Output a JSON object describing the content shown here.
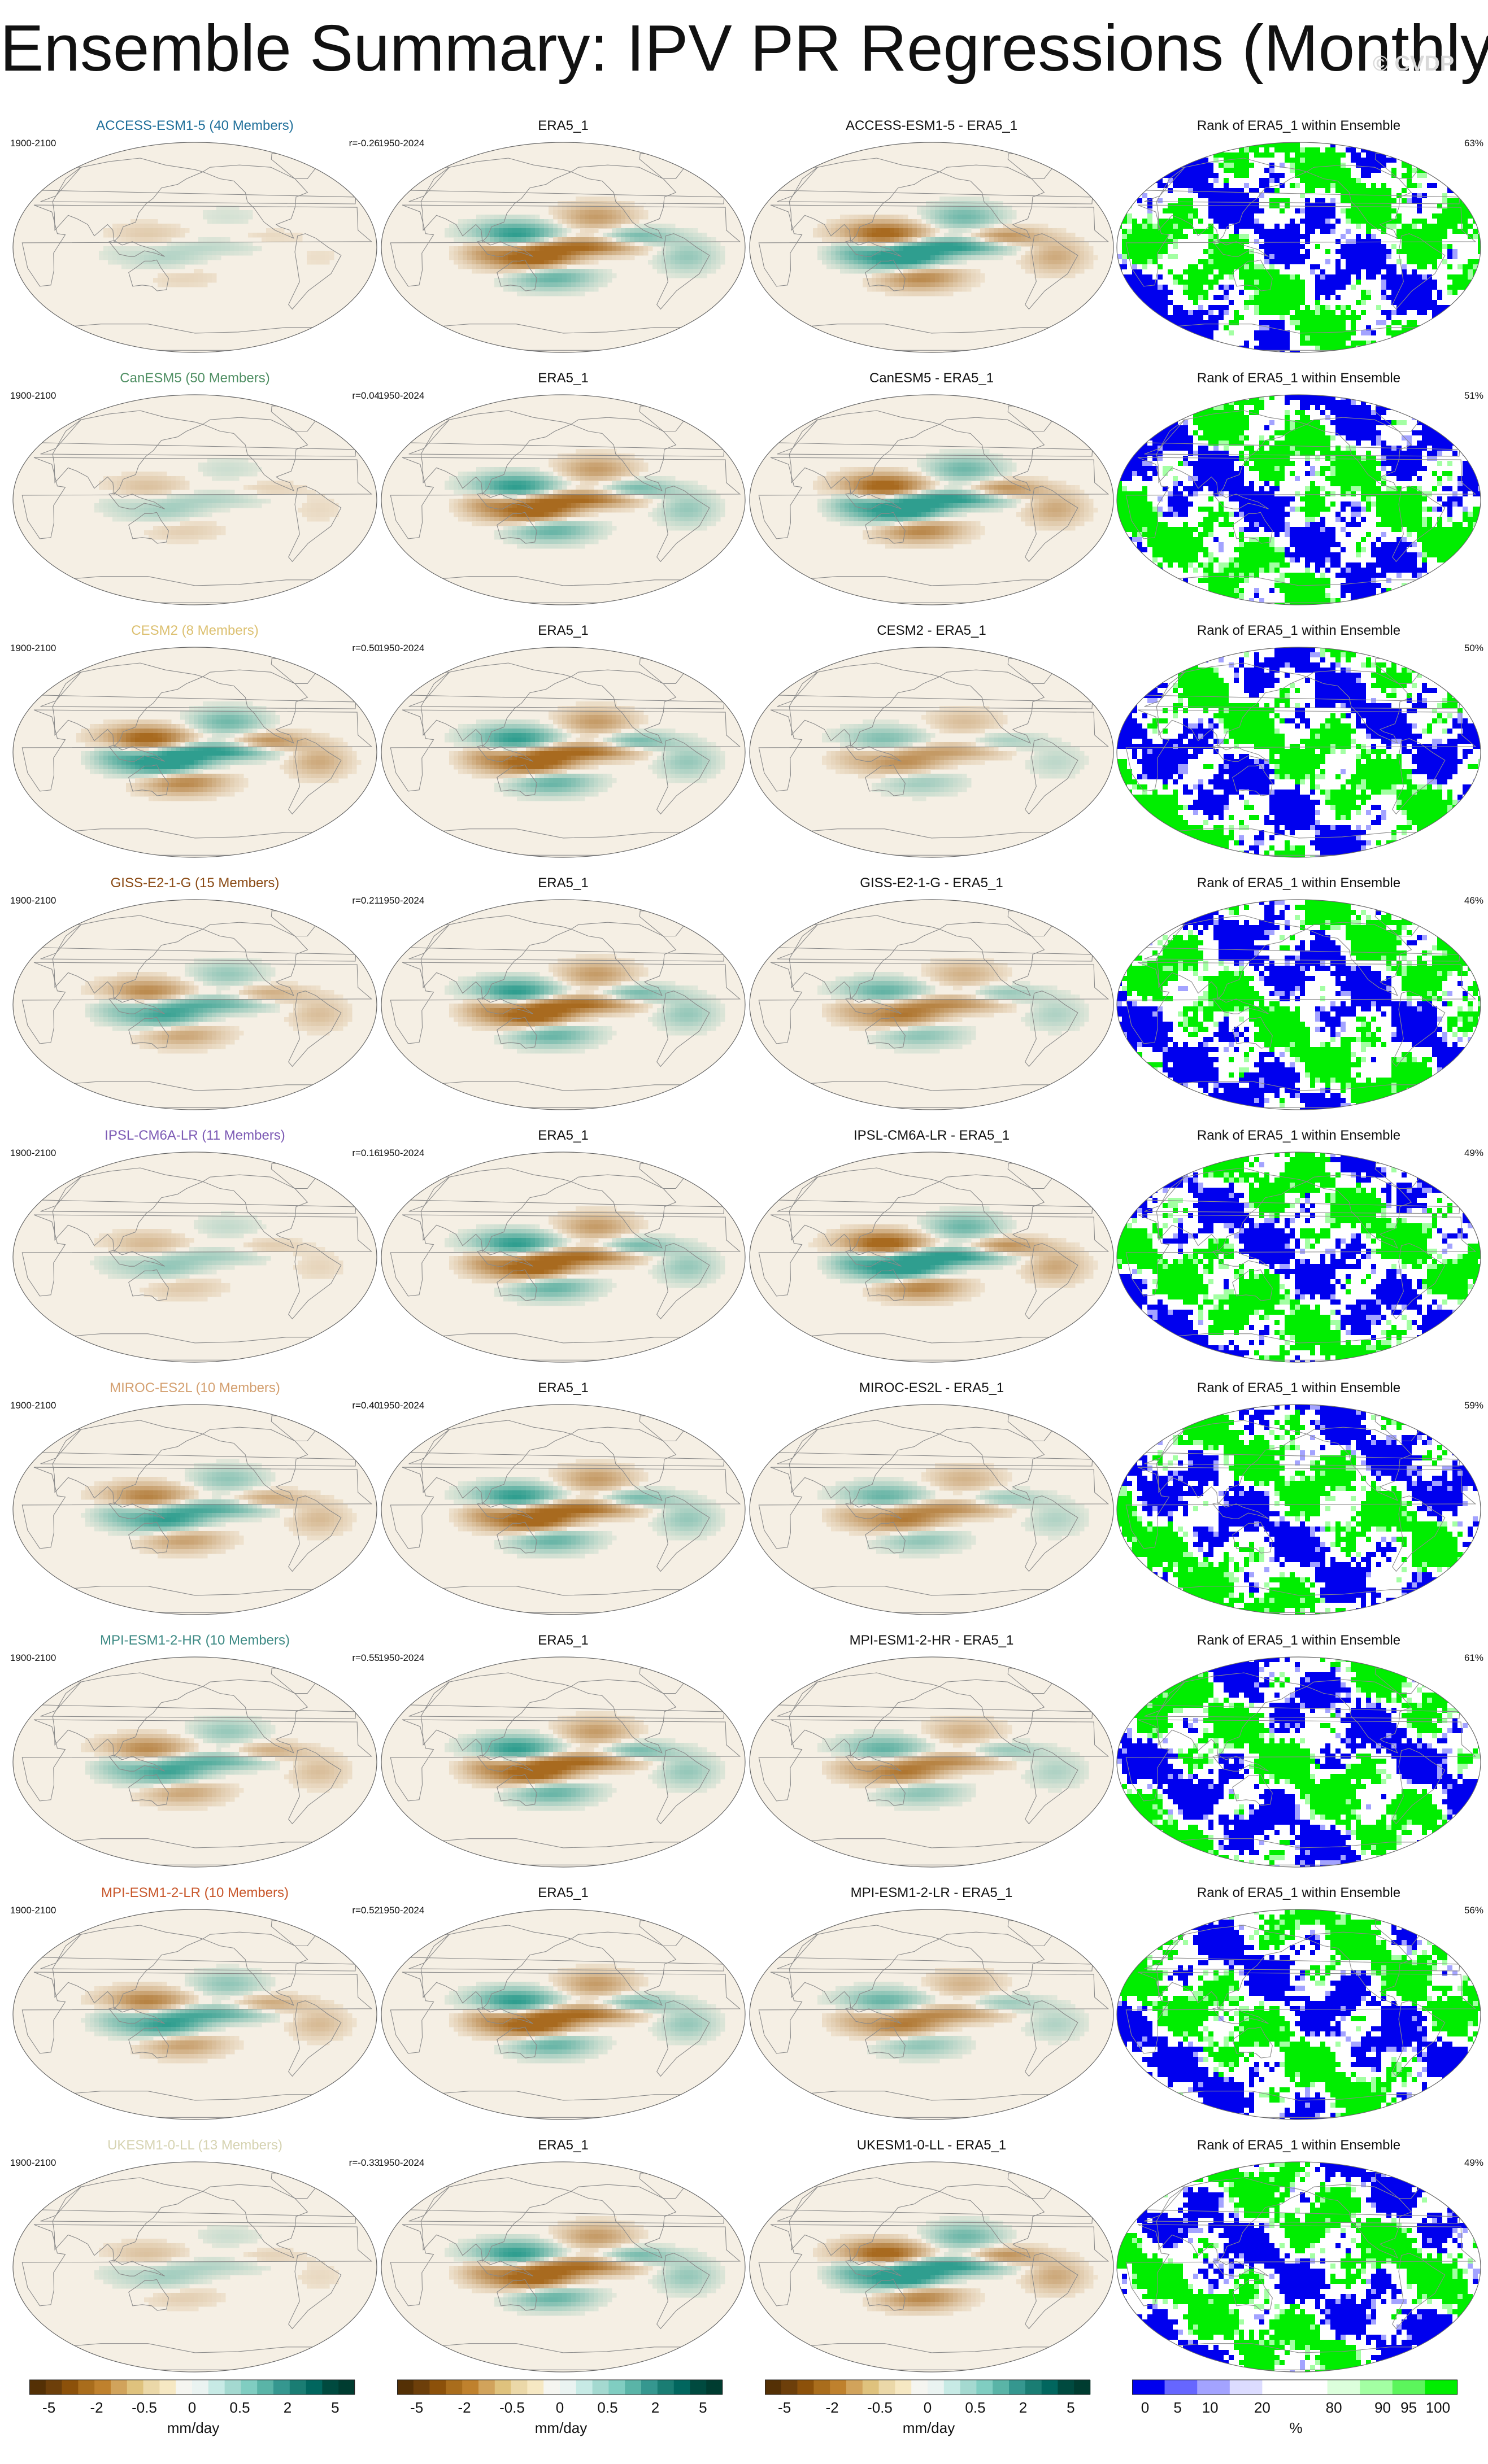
{
  "title": "Ensemble Summary: IPV PR Regressions (Monthly)",
  "watermark": "© CVDP",
  "colors": {
    "ocean_base": "#f6efe2",
    "wet": "#2f9e8f",
    "dry": "#a86a1f",
    "rank_low": "#0000ee",
    "rank_high": "#00ee00",
    "coast": "#8a8a8a"
  },
  "rows": [
    {
      "model_title": "ACCESS-ESM1-5 (40 Members)",
      "model_color": "#1f6f9a",
      "model_years": "1900-2100",
      "corr": "r=-0.26",
      "obs_title": "ERA5_1",
      "obs_years": "1950-2024",
      "diff_title": "ACCESS-ESM1-5 - ERA5_1",
      "rank_title": "Rank of ERA5_1 within Ensemble",
      "rank_pct": "63%",
      "ens_strength": 0.15,
      "diff_sign": 1
    },
    {
      "model_title": "CanESM5 (50 Members)",
      "model_color": "#4f8f63",
      "model_years": "1900-2100",
      "corr": "r=0.04",
      "obs_title": "ERA5_1",
      "obs_years": "1950-2024",
      "diff_title": "CanESM5 - ERA5_1",
      "rank_title": "Rank of ERA5_1 within Ensemble",
      "rank_pct": "51%",
      "ens_strength": 0.2,
      "diff_sign": 1
    },
    {
      "model_title": "CESM2 (8 Members)",
      "model_color": "#dcc070",
      "model_years": "1900-2100",
      "corr": "r=0.50",
      "obs_title": "ERA5_1",
      "obs_years": "1950-2024",
      "diff_title": "CESM2 - ERA5_1",
      "rank_title": "Rank of ERA5_1 within Ensemble",
      "rank_pct": "50%",
      "ens_strength": 0.85,
      "diff_sign": -1
    },
    {
      "model_title": "GISS-E2-1-G (15 Members)",
      "model_color": "#8a4a14",
      "model_years": "1900-2100",
      "corr": "r=0.21",
      "obs_title": "ERA5_1",
      "obs_years": "1950-2024",
      "diff_title": "GISS-E2-1-G - ERA5_1",
      "rank_title": "Rank of ERA5_1 within Ensemble",
      "rank_pct": "46%",
      "ens_strength": 0.55,
      "diff_sign": -1
    },
    {
      "model_title": "IPSL-CM6A-LR (11 Members)",
      "model_color": "#7d5bb5",
      "model_years": "1900-2100",
      "corr": "r=0.16",
      "obs_title": "ERA5_1",
      "obs_years": "1950-2024",
      "diff_title": "IPSL-CM6A-LR - ERA5_1",
      "rank_title": "Rank of ERA5_1 within Ensemble",
      "rank_pct": "49%",
      "ens_strength": 0.25,
      "diff_sign": 1
    },
    {
      "model_title": "MIROC-ES2L (10 Members)",
      "model_color": "#d4a070",
      "model_years": "1900-2100",
      "corr": "r=0.40",
      "obs_title": "ERA5_1",
      "obs_years": "1950-2024",
      "diff_title": "MIROC-ES2L - ERA5_1",
      "rank_title": "Rank of ERA5_1 within Ensemble",
      "rank_pct": "59%",
      "ens_strength": 0.6,
      "diff_sign": -1
    },
    {
      "model_title": "MPI-ESM1-2-HR (10 Members)",
      "model_color": "#3d8a84",
      "model_years": "1900-2100",
      "corr": "r=0.55",
      "obs_title": "ERA5_1",
      "obs_years": "1950-2024",
      "diff_title": "MPI-ESM1-2-HR - ERA5_1",
      "rank_title": "Rank of ERA5_1 within Ensemble",
      "rank_pct": "61%",
      "ens_strength": 0.55,
      "diff_sign": -1
    },
    {
      "model_title": "MPI-ESM1-2-LR (10 Members)",
      "model_color": "#c8562a",
      "model_years": "1900-2100",
      "corr": "r=0.52",
      "obs_title": "ERA5_1",
      "obs_years": "1950-2024",
      "diff_title": "MPI-ESM1-2-LR - ERA5_1",
      "rank_title": "Rank of ERA5_1 within Ensemble",
      "rank_pct": "56%",
      "ens_strength": 0.6,
      "diff_sign": -1
    },
    {
      "model_title": "UKESM1-0-LL (13 Members)",
      "model_color": "#d6d3b2",
      "model_years": "1900-2100",
      "corr": "r=-0.33",
      "obs_title": "ERA5_1",
      "obs_years": "1950-2024",
      "diff_title": "UKESM1-0-LL - ERA5_1",
      "rank_title": "Rank of ERA5_1 within Ensemble",
      "rank_pct": "49%",
      "ens_strength": 0.2,
      "diff_sign": 1
    }
  ],
  "colorbars": [
    {
      "unit": "mm/day",
      "ticks": [
        "-5",
        "-2",
        "-0.5",
        "0",
        "0.5",
        "2",
        "5"
      ],
      "colors": [
        "#543005",
        "#6d3f0a",
        "#8c510a",
        "#a96d1c",
        "#bf812d",
        "#d1a35b",
        "#dfc27d",
        "#ebd8a8",
        "#f6e8c3",
        "#f5f5f0",
        "#eaf3f1",
        "#c7eae5",
        "#a4d9d0",
        "#80cdc1",
        "#5ab4a7",
        "#35978f",
        "#1a7d73",
        "#01665e",
        "#004a3f",
        "#003c30"
      ]
    },
    {
      "unit": "mm/day",
      "ticks": [
        "-5",
        "-2",
        "-0.5",
        "0",
        "0.5",
        "2",
        "5"
      ],
      "colors": [
        "#543005",
        "#6d3f0a",
        "#8c510a",
        "#a96d1c",
        "#bf812d",
        "#d1a35b",
        "#dfc27d",
        "#ebd8a8",
        "#f6e8c3",
        "#f5f5f0",
        "#eaf3f1",
        "#c7eae5",
        "#a4d9d0",
        "#80cdc1",
        "#5ab4a7",
        "#35978f",
        "#1a7d73",
        "#01665e",
        "#004a3f",
        "#003c30"
      ]
    },
    {
      "unit": "mm/day",
      "ticks": [
        "-5",
        "-2",
        "-0.5",
        "0",
        "0.5",
        "2",
        "5"
      ],
      "colors": [
        "#543005",
        "#6d3f0a",
        "#8c510a",
        "#a96d1c",
        "#bf812d",
        "#d1a35b",
        "#dfc27d",
        "#ebd8a8",
        "#f6e8c3",
        "#f5f5f0",
        "#eaf3f1",
        "#c7eae5",
        "#a4d9d0",
        "#80cdc1",
        "#5ab4a7",
        "#35978f",
        "#1a7d73",
        "#01665e",
        "#004a3f",
        "#003c30"
      ]
    },
    {
      "unit": "%",
      "ticks": [
        "0",
        "5",
        "10",
        "20",
        "80",
        "90",
        "95",
        "100"
      ],
      "colors": [
        "#0000ee",
        "#6666ff",
        "#a3a3ff",
        "#dcdcff",
        "#ffffff",
        "#ffffff",
        "#dcffdc",
        "#a3ffa3",
        "#5cf55c",
        "#00ee00"
      ]
    }
  ]
}
